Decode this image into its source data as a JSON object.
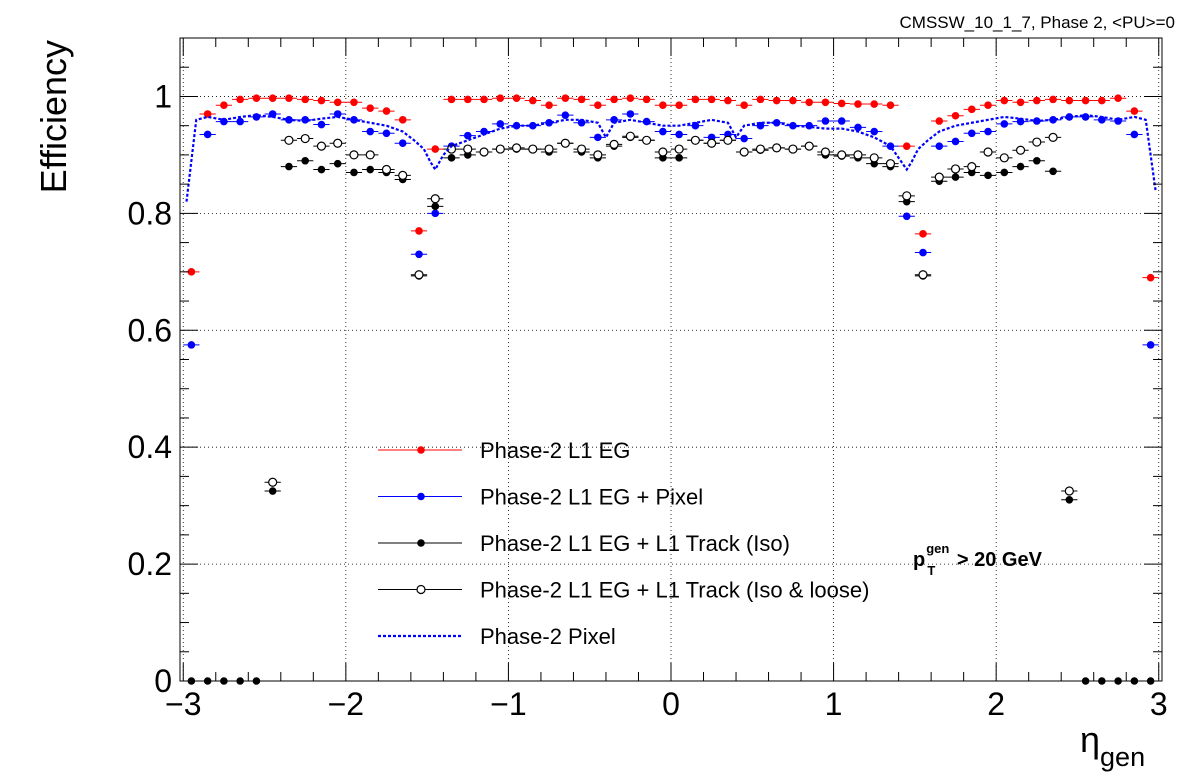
{
  "header": {
    "text": "CMSSW_10_1_7, Phase 2, <PU>=0"
  },
  "annotation": {
    "p": "p",
    "sup": "gen",
    "sub": "T",
    "rest": " > 20 GeV"
  },
  "chart_data": {
    "type": "scatter",
    "title": "",
    "xlabel": "η",
    "xlabel_sub": "gen",
    "ylabel": "Efficiency",
    "xlim": [
      -3.02,
      3.02
    ],
    "ylim": [
      0,
      1.1
    ],
    "grid": true,
    "legend_position": "lower-center",
    "xticks": [
      -3,
      -2,
      -1,
      0,
      1,
      2,
      3
    ],
    "xtick_labels": [
      "−3",
      "−2",
      "−1",
      "0",
      "1",
      "2",
      "3"
    ],
    "yticks": [
      0,
      0.2,
      0.4,
      0.6,
      0.8,
      1
    ],
    "ytick_labels": [
      "0",
      "0.2",
      "0.4",
      "0.6",
      "0.8",
      "1"
    ],
    "x_bin_halfwidth": 0.05,
    "series": [
      {
        "name": "Phase-2 L1 EG",
        "color": "#ff0000",
        "marker": "filled",
        "x": [
          -2.95,
          -2.85,
          -2.75,
          -2.65,
          -2.55,
          -2.45,
          -2.35,
          -2.25,
          -2.15,
          -2.05,
          -1.95,
          -1.85,
          -1.75,
          -1.65,
          -1.55,
          -1.45,
          -1.35,
          -1.25,
          -1.15,
          -1.05,
          -0.95,
          -0.85,
          -0.75,
          -0.65,
          -0.55,
          -0.45,
          -0.35,
          -0.25,
          -0.15,
          -0.05,
          0.05,
          0.15,
          0.25,
          0.35,
          0.45,
          0.55,
          0.65,
          0.75,
          0.85,
          0.95,
          1.05,
          1.15,
          1.25,
          1.35,
          1.45,
          1.55,
          1.65,
          1.75,
          1.85,
          1.95,
          2.05,
          2.15,
          2.25,
          2.35,
          2.45,
          2.55,
          2.65,
          2.75,
          2.85,
          2.95
        ],
        "y": [
          0.7,
          0.97,
          0.985,
          0.995,
          0.997,
          0.997,
          0.997,
          0.995,
          0.993,
          0.99,
          0.99,
          0.98,
          0.975,
          0.96,
          0.77,
          0.91,
          0.995,
          0.995,
          0.995,
          0.997,
          0.997,
          0.993,
          0.985,
          0.997,
          0.995,
          0.985,
          0.995,
          0.997,
          0.995,
          0.985,
          0.985,
          0.995,
          0.995,
          0.993,
          0.985,
          0.995,
          0.993,
          0.993,
          0.99,
          0.99,
          0.988,
          0.987,
          0.987,
          0.985,
          0.915,
          0.765,
          0.958,
          0.967,
          0.978,
          0.985,
          0.993,
          0.99,
          0.993,
          0.995,
          0.993,
          0.993,
          0.993,
          0.997,
          0.975,
          0.69
        ]
      },
      {
        "name": "Phase-2 L1 EG + Pixel",
        "color": "#0000ff",
        "marker": "filled",
        "x": [
          -2.95,
          -2.85,
          -2.75,
          -2.65,
          -2.55,
          -2.45,
          -2.35,
          -2.25,
          -2.15,
          -2.05,
          -1.95,
          -1.85,
          -1.75,
          -1.65,
          -1.55,
          -1.45,
          -1.35,
          -1.25,
          -1.15,
          -1.05,
          -0.95,
          -0.85,
          -0.75,
          -0.65,
          -0.55,
          -0.45,
          -0.35,
          -0.25,
          -0.15,
          -0.05,
          0.05,
          0.15,
          0.25,
          0.35,
          0.45,
          0.55,
          0.65,
          0.75,
          0.85,
          0.95,
          1.05,
          1.15,
          1.25,
          1.35,
          1.45,
          1.55,
          1.65,
          1.75,
          1.85,
          1.95,
          2.05,
          2.15,
          2.25,
          2.35,
          2.45,
          2.55,
          2.65,
          2.75,
          2.85,
          2.95
        ],
        "y": [
          0.575,
          0.935,
          0.957,
          0.957,
          0.965,
          0.97,
          0.96,
          0.96,
          0.952,
          0.97,
          0.96,
          0.94,
          0.937,
          0.92,
          0.73,
          0.8,
          0.915,
          0.933,
          0.94,
          0.953,
          0.95,
          0.95,
          0.955,
          0.968,
          0.955,
          0.93,
          0.96,
          0.97,
          0.957,
          0.94,
          0.935,
          0.95,
          0.93,
          0.935,
          0.928,
          0.95,
          0.955,
          0.95,
          0.95,
          0.958,
          0.958,
          0.947,
          0.94,
          0.915,
          0.795,
          0.733,
          0.915,
          0.923,
          0.937,
          0.94,
          0.953,
          0.957,
          0.958,
          0.96,
          0.965,
          0.965,
          0.96,
          0.958,
          0.935,
          0.575
        ]
      },
      {
        "name": "Phase-2 L1 EG + L1 Track (Iso)",
        "color": "#000000",
        "marker": "filled",
        "x": [
          -2.95,
          -2.85,
          -2.75,
          -2.65,
          -2.55,
          -2.45,
          -2.35,
          -2.25,
          -2.15,
          -2.05,
          -1.95,
          -1.85,
          -1.75,
          -1.65,
          -1.55,
          -1.45,
          -1.35,
          -1.25,
          -1.15,
          -1.05,
          -0.95,
          -0.85,
          -0.75,
          -0.65,
          -0.55,
          -0.45,
          -0.35,
          -0.25,
          -0.15,
          -0.05,
          0.05,
          0.15,
          0.25,
          0.35,
          0.45,
          0.55,
          0.65,
          0.75,
          0.85,
          0.95,
          1.05,
          1.15,
          1.25,
          1.35,
          1.45,
          1.55,
          1.65,
          1.75,
          1.85,
          1.95,
          2.05,
          2.15,
          2.25,
          2.35,
          2.45,
          2.55,
          2.65,
          2.75,
          2.85,
          2.95
        ],
        "y": [
          0,
          0,
          0,
          0,
          0,
          0.325,
          0.88,
          0.89,
          0.875,
          0.885,
          0.87,
          0.875,
          0.87,
          0.858,
          0.693,
          0.812,
          0.895,
          0.9,
          0.905,
          0.91,
          0.91,
          0.91,
          0.905,
          0.92,
          0.905,
          0.895,
          0.915,
          0.93,
          0.925,
          0.895,
          0.895,
          0.925,
          0.92,
          0.925,
          0.905,
          0.908,
          0.912,
          0.91,
          0.915,
          0.9,
          0.898,
          0.895,
          0.885,
          0.88,
          0.82,
          0.693,
          0.855,
          0.862,
          0.87,
          0.865,
          0.87,
          0.88,
          0.89,
          0.872,
          0.31,
          0,
          0,
          0,
          0,
          0
        ]
      },
      {
        "name": "Phase-2 L1 EG + L1 Track (Iso & loose)",
        "color": "#000000",
        "marker": "open",
        "x": [
          -2.45,
          -2.35,
          -2.25,
          -2.15,
          -2.05,
          -1.95,
          -1.85,
          -1.75,
          -1.65,
          -1.55,
          -1.45,
          -1.35,
          -1.25,
          -1.15,
          -1.05,
          -0.95,
          -0.85,
          -0.75,
          -0.65,
          -0.55,
          -0.45,
          -0.35,
          -0.25,
          -0.15,
          -0.05,
          0.05,
          0.15,
          0.25,
          0.35,
          0.45,
          0.55,
          0.65,
          0.75,
          0.85,
          0.95,
          1.05,
          1.15,
          1.25,
          1.35,
          1.45,
          1.55,
          1.65,
          1.75,
          1.85,
          1.95,
          2.05,
          2.15,
          2.25,
          2.35,
          2.45
        ],
        "y": [
          0.34,
          0.925,
          0.928,
          0.915,
          0.92,
          0.9,
          0.9,
          0.875,
          0.865,
          0.695,
          0.825,
          0.91,
          0.91,
          0.905,
          0.91,
          0.912,
          0.91,
          0.91,
          0.92,
          0.91,
          0.9,
          0.918,
          0.932,
          0.925,
          0.905,
          0.91,
          0.925,
          0.92,
          0.925,
          0.905,
          0.91,
          0.912,
          0.91,
          0.915,
          0.905,
          0.9,
          0.9,
          0.895,
          0.885,
          0.83,
          0.695,
          0.862,
          0.876,
          0.88,
          0.905,
          0.895,
          0.908,
          0.922,
          0.93,
          0.325
        ]
      },
      {
        "name": "Phase-2 Pixel",
        "color": "#0000ff",
        "marker": "dashed-line",
        "x": [
          -2.98,
          -2.92,
          -2.85,
          -2.75,
          -2.65,
          -2.55,
          -2.45,
          -2.35,
          -2.25,
          -2.15,
          -2.05,
          -1.95,
          -1.85,
          -1.75,
          -1.65,
          -1.58,
          -1.52,
          -1.48,
          -1.45,
          -1.4,
          -1.35,
          -1.25,
          -1.15,
          -1.05,
          -0.95,
          -0.85,
          -0.75,
          -0.65,
          -0.55,
          -0.45,
          -0.4,
          -0.35,
          -0.25,
          -0.15,
          -0.05,
          0.05,
          0.15,
          0.25,
          0.35,
          0.4,
          0.45,
          0.55,
          0.65,
          0.75,
          0.85,
          0.95,
          1.05,
          1.15,
          1.25,
          1.35,
          1.45,
          1.48,
          1.52,
          1.58,
          1.65,
          1.75,
          1.85,
          1.95,
          2.05,
          2.15,
          2.25,
          2.35,
          2.45,
          2.55,
          2.65,
          2.75,
          2.85,
          2.92,
          2.98
        ],
        "y": [
          0.82,
          0.96,
          0.965,
          0.96,
          0.965,
          0.968,
          0.965,
          0.96,
          0.958,
          0.962,
          0.965,
          0.96,
          0.955,
          0.95,
          0.94,
          0.925,
          0.91,
          0.888,
          0.875,
          0.9,
          0.915,
          0.925,
          0.935,
          0.945,
          0.95,
          0.95,
          0.955,
          0.96,
          0.96,
          0.955,
          0.93,
          0.955,
          0.96,
          0.955,
          0.95,
          0.95,
          0.955,
          0.96,
          0.955,
          0.93,
          0.95,
          0.955,
          0.955,
          0.95,
          0.948,
          0.945,
          0.945,
          0.94,
          0.93,
          0.915,
          0.875,
          0.888,
          0.91,
          0.925,
          0.94,
          0.95,
          0.955,
          0.96,
          0.965,
          0.962,
          0.958,
          0.96,
          0.965,
          0.968,
          0.965,
          0.96,
          0.965,
          0.96,
          0.84
        ]
      }
    ]
  }
}
